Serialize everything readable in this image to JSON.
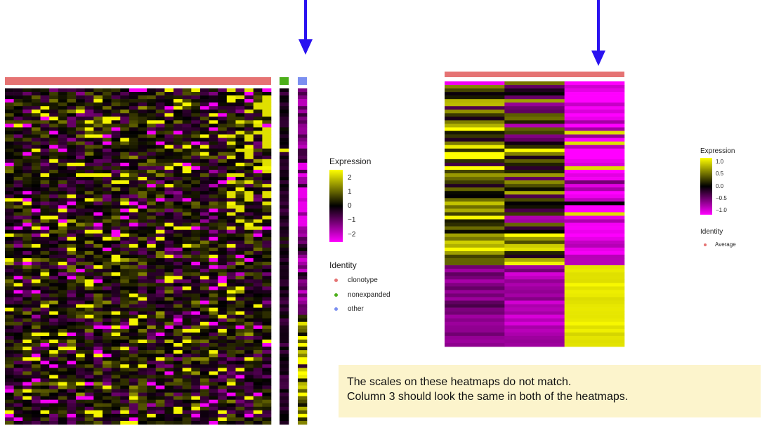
{
  "chart_data": [
    {
      "type": "heatmap",
      "title": "",
      "xlabel": "",
      "ylabel": "",
      "identity_groups": [
        {
          "name": "clonotype",
          "color": "#e57373",
          "columns": 30
        },
        {
          "name": "nonexpanded",
          "color": "#4caf1a",
          "columns": 1
        },
        {
          "name": "other",
          "color": "#7b8ff0",
          "columns": 1
        }
      ],
      "rows": 95,
      "color_scale": {
        "title": "Expression",
        "ticks": [
          2,
          1,
          0,
          -1,
          -2
        ],
        "tick_labels": [
          "2",
          "1",
          "0",
          "−1",
          "−2"
        ],
        "range": [
          -2.5,
          2.5
        ],
        "low_color": "#ff00ff",
        "mid_color": "#000000",
        "high_color": "#ffff00"
      },
      "legend": {
        "title": "Identity",
        "entries": [
          "clonotype",
          "nonexpanded",
          "other"
        ]
      }
    },
    {
      "type": "heatmap",
      "title": "",
      "xlabel": "",
      "ylabel": "",
      "identity_groups": [
        {
          "name": "Average",
          "color": "#e57373",
          "columns": 3
        }
      ],
      "rows": 75,
      "color_scale": {
        "title": "Expression",
        "ticks": [
          1.0,
          0.5,
          0.0,
          -0.5,
          -1.0
        ],
        "tick_labels": [
          "1.0",
          "0.5",
          "0.0",
          "−0.5",
          "−1.0"
        ],
        "range": [
          -1.15,
          1.15
        ],
        "low_color": "#ff00ff",
        "mid_color": "#000000",
        "high_color": "#ffff00"
      },
      "legend": {
        "title": "Identity",
        "entries": [
          "Average"
        ]
      }
    }
  ],
  "annotation": {
    "line1": "The scales on these heatmaps do not match.",
    "line2": "Column 3 should look the same in both of the heatmaps.",
    "arrow_color": "#2a12f0"
  }
}
